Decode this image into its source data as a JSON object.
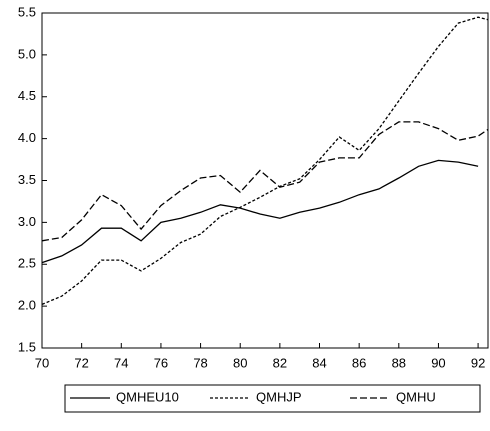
{
  "chart_data": {
    "type": "line",
    "x": [
      70,
      71,
      72,
      73,
      74,
      75,
      76,
      77,
      78,
      79,
      80,
      81,
      82,
      83,
      84,
      85,
      86,
      87,
      88,
      89,
      90,
      91,
      92,
      92.5
    ],
    "series": [
      {
        "name": "QMHEU10",
        "color": "#000000",
        "dash": "none",
        "values": [
          2.52,
          2.6,
          2.73,
          2.93,
          2.93,
          2.78,
          3.0,
          3.05,
          3.12,
          3.21,
          3.17,
          3.1,
          3.05,
          3.12,
          3.17,
          3.24,
          3.33,
          3.4,
          3.53,
          3.67,
          3.74,
          3.72,
          3.67,
          null
        ]
      },
      {
        "name": "QMHJP",
        "color": "#000000",
        "dash": "3,2",
        "values": [
          2.02,
          2.12,
          2.3,
          2.55,
          2.55,
          2.42,
          2.57,
          2.76,
          2.86,
          3.07,
          3.18,
          3.3,
          3.43,
          3.52,
          3.75,
          4.02,
          3.86,
          4.12,
          4.45,
          4.78,
          5.1,
          5.38,
          5.45,
          5.42
        ]
      },
      {
        "name": "QMHU",
        "color": "#000000",
        "dash": "7,3",
        "values": [
          2.78,
          2.82,
          3.03,
          3.33,
          3.2,
          2.92,
          3.2,
          3.38,
          3.53,
          3.56,
          3.36,
          3.62,
          3.42,
          3.48,
          3.72,
          3.77,
          3.77,
          4.05,
          4.2,
          4.2,
          4.12,
          3.98,
          4.03,
          4.11
        ]
      }
    ],
    "xlim": [
      70,
      92.5
    ],
    "xticks": [
      70,
      72,
      74,
      76,
      78,
      80,
      82,
      84,
      86,
      88,
      90,
      92
    ],
    "ylim": [
      1.5,
      5.5
    ],
    "yticks": [
      1.5,
      {
        "value": 2,
        "label": "2.0"
      },
      2.5,
      {
        "value": 3,
        "label": "3.0"
      },
      3.5,
      {
        "value": 4,
        "label": "4.0"
      },
      4.5,
      {
        "value": 5,
        "label": "5.0"
      },
      5.5
    ],
    "grid": false,
    "legend": "bottom"
  }
}
